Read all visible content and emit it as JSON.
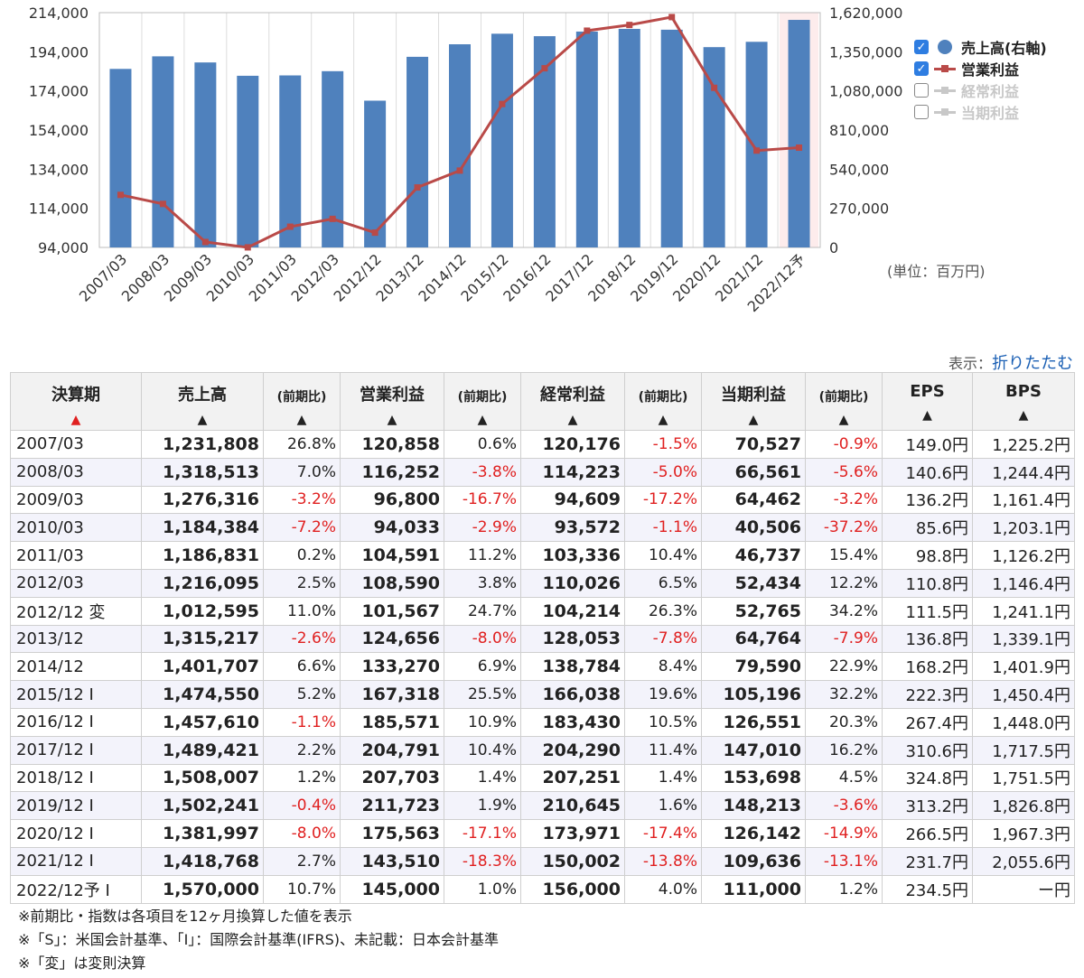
{
  "chart_data": {
    "type": "bar",
    "categories": [
      "2007/03",
      "2008/03",
      "2009/03",
      "2010/03",
      "2011/03",
      "2012/03",
      "2012/12",
      "2013/12",
      "2014/12",
      "2015/12",
      "2016/12",
      "2017/12",
      "2018/12",
      "2019/12",
      "2020/12",
      "2021/12",
      "2022/12予"
    ],
    "series": [
      {
        "name": "売上高(右軸)",
        "type": "bar",
        "axis": "right",
        "color": "#4f81bd",
        "values": [
          1231808,
          1318513,
          1276316,
          1184384,
          1186831,
          1216095,
          1012595,
          1315217,
          1401707,
          1474550,
          1457610,
          1489421,
          1508007,
          1502241,
          1381997,
          1418768,
          1570000
        ]
      },
      {
        "name": "営業利益",
        "type": "line",
        "axis": "left",
        "color": "#b94a48",
        "values": [
          120858,
          116252,
          96800,
          94033,
          104591,
          108590,
          101567,
          124656,
          133270,
          167318,
          185571,
          204791,
          207703,
          211723,
          175563,
          143510,
          145000
        ]
      }
    ],
    "left_axis": {
      "ticks": [
        "94,000",
        "114,000",
        "134,000",
        "154,000",
        "174,000",
        "194,000",
        "214,000"
      ],
      "min": 94000,
      "max": 214000
    },
    "right_axis": {
      "ticks": [
        "0",
        "270,000",
        "540,000",
        "810,000",
        "1,080,000",
        "1,350,000",
        "1,620,000"
      ],
      "min": 0,
      "max": 1620000
    },
    "highlight_category": "2022/12予",
    "grid": "vertical",
    "legend_position": "right"
  },
  "legend": {
    "items": [
      {
        "label": "売上高(右軸)",
        "checked": true,
        "style": "dot"
      },
      {
        "label": "営業利益",
        "checked": true,
        "style": "red"
      },
      {
        "label": "経常利益",
        "checked": false,
        "style": "gray"
      },
      {
        "label": "当期利益",
        "checked": false,
        "style": "gray"
      }
    ]
  },
  "unit_label": "(単位：百万円)",
  "toggle": {
    "prefix": "表示：",
    "link": "折りたたむ"
  },
  "table": {
    "headers": {
      "period": "決算期",
      "sales": "売上高",
      "chg": "(前期比)",
      "op": "営業利益",
      "ord": "経常利益",
      "net": "当期利益",
      "eps": "EPS",
      "bps": "BPS",
      "sort_active": "▲",
      "sort": "▲"
    },
    "rows": [
      [
        "2007/03",
        "1,231,808",
        "26.8%",
        "120,858",
        "0.6%",
        "120,176",
        "-1.5%",
        "70,527",
        "-0.9%",
        "149.0円",
        "1,225.2円"
      ],
      [
        "2008/03",
        "1,318,513",
        "7.0%",
        "116,252",
        "-3.8%",
        "114,223",
        "-5.0%",
        "66,561",
        "-5.6%",
        "140.6円",
        "1,244.4円"
      ],
      [
        "2009/03",
        "1,276,316",
        "-3.2%",
        "96,800",
        "-16.7%",
        "94,609",
        "-17.2%",
        "64,462",
        "-3.2%",
        "136.2円",
        "1,161.4円"
      ],
      [
        "2010/03",
        "1,184,384",
        "-7.2%",
        "94,033",
        "-2.9%",
        "93,572",
        "-1.1%",
        "40,506",
        "-37.2%",
        "85.6円",
        "1,203.1円"
      ],
      [
        "2011/03",
        "1,186,831",
        "0.2%",
        "104,591",
        "11.2%",
        "103,336",
        "10.4%",
        "46,737",
        "15.4%",
        "98.8円",
        "1,126.2円"
      ],
      [
        "2012/03",
        "1,216,095",
        "2.5%",
        "108,590",
        "3.8%",
        "110,026",
        "6.5%",
        "52,434",
        "12.2%",
        "110.8円",
        "1,146.4円"
      ],
      [
        "2012/12 変",
        "1,012,595",
        "11.0%",
        "101,567",
        "24.7%",
        "104,214",
        "26.3%",
        "52,765",
        "34.2%",
        "111.5円",
        "1,241.1円"
      ],
      [
        "2013/12",
        "1,315,217",
        "-2.6%",
        "124,656",
        "-8.0%",
        "128,053",
        "-7.8%",
        "64,764",
        "-7.9%",
        "136.8円",
        "1,339.1円"
      ],
      [
        "2014/12",
        "1,401,707",
        "6.6%",
        "133,270",
        "6.9%",
        "138,784",
        "8.4%",
        "79,590",
        "22.9%",
        "168.2円",
        "1,401.9円"
      ],
      [
        "2015/12 I",
        "1,474,550",
        "5.2%",
        "167,318",
        "25.5%",
        "166,038",
        "19.6%",
        "105,196",
        "32.2%",
        "222.3円",
        "1,450.4円"
      ],
      [
        "2016/12 I",
        "1,457,610",
        "-1.1%",
        "185,571",
        "10.9%",
        "183,430",
        "10.5%",
        "126,551",
        "20.3%",
        "267.4円",
        "1,448.0円"
      ],
      [
        "2017/12 I",
        "1,489,421",
        "2.2%",
        "204,791",
        "10.4%",
        "204,290",
        "11.4%",
        "147,010",
        "16.2%",
        "310.6円",
        "1,717.5円"
      ],
      [
        "2018/12 I",
        "1,508,007",
        "1.2%",
        "207,703",
        "1.4%",
        "207,251",
        "1.4%",
        "153,698",
        "4.5%",
        "324.8円",
        "1,751.5円"
      ],
      [
        "2019/12 I",
        "1,502,241",
        "-0.4%",
        "211,723",
        "1.9%",
        "210,645",
        "1.6%",
        "148,213",
        "-3.6%",
        "313.2円",
        "1,826.8円"
      ],
      [
        "2020/12 I",
        "1,381,997",
        "-8.0%",
        "175,563",
        "-17.1%",
        "173,971",
        "-17.4%",
        "126,142",
        "-14.9%",
        "266.5円",
        "1,967.3円"
      ],
      [
        "2021/12 I",
        "1,418,768",
        "2.7%",
        "143,510",
        "-18.3%",
        "150,002",
        "-13.8%",
        "109,636",
        "-13.1%",
        "231.7円",
        "2,055.6円"
      ],
      [
        "2022/12予 I",
        "1,570,000",
        "10.7%",
        "145,000",
        "1.0%",
        "156,000",
        "4.0%",
        "111,000",
        "1.2%",
        "234.5円",
        "ー円"
      ]
    ]
  },
  "notes": [
    "※前期比・指数は各項目を12ヶ月換算した値を表示",
    "※「S」：米国会計基準、「I」：国際会計基準(IFRS)、未記載：日本会計基準",
    "※「変」は変則決算"
  ]
}
